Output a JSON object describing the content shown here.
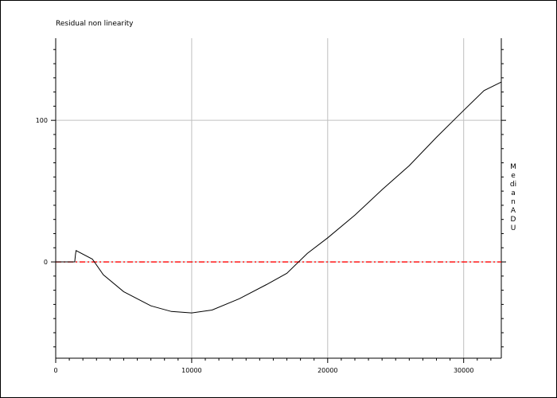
{
  "chart_data": {
    "type": "line",
    "title": "Residual non linearity",
    "xlabel": "",
    "ylabel": "Median ADU",
    "xlim": [
      0,
      32768
    ],
    "ylim": [
      -68,
      158
    ],
    "xticks": [
      0,
      10000,
      20000,
      30000
    ],
    "yticks": [
      0,
      100
    ],
    "grid": true,
    "series": [
      {
        "values_kind": "residual",
        "color": "#000000",
        "x": [
          0,
          1400,
          1450,
          1500,
          2700,
          3500,
          5000,
          7000,
          8500,
          10000,
          11500,
          13500,
          15500,
          17000,
          18500,
          20000,
          22000,
          24000,
          26000,
          28000,
          30000,
          31500,
          32768
        ],
        "y": [
          0,
          0,
          5,
          8,
          2,
          -9,
          -21,
          -31,
          -35,
          -36,
          -34,
          -26,
          -16,
          -8,
          6,
          17,
          33,
          51,
          68,
          88,
          107,
          121,
          127
        ]
      }
    ],
    "reference_line": {
      "y": 0,
      "color": "#ff0000",
      "style": "dash-dot"
    }
  }
}
